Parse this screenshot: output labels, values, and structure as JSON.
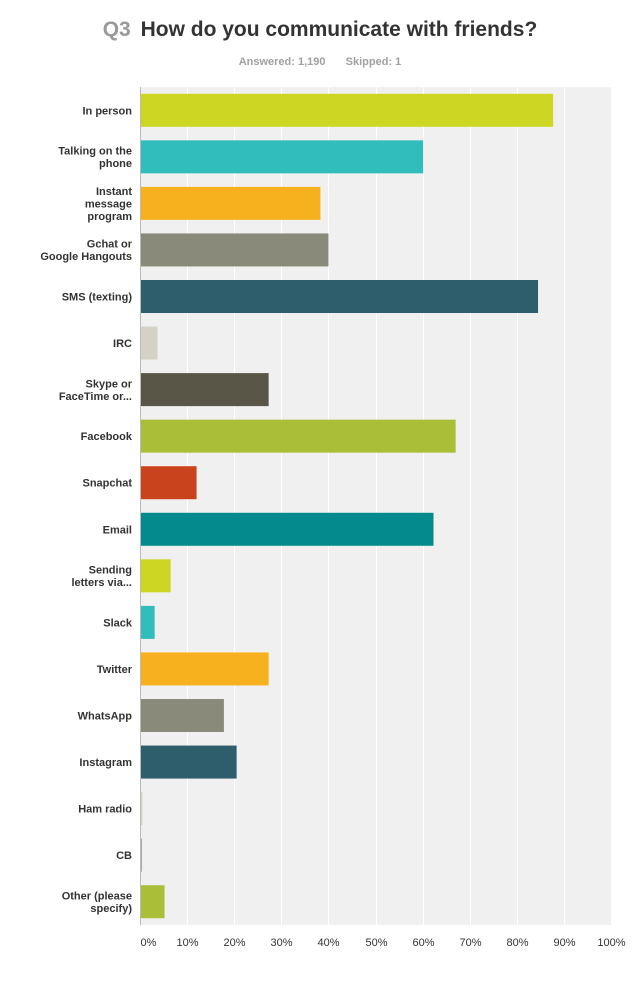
{
  "header": {
    "question_number": "Q3",
    "question_text": "How do you communicate with friends?",
    "answered_label": "Answered:",
    "answered_count": "1,190",
    "skipped_label": "Skipped:",
    "skipped_count": "1"
  },
  "chart_data": {
    "type": "bar",
    "orientation": "horizontal",
    "title": "How do you communicate with friends?",
    "xlabel": "",
    "ylabel": "",
    "xlim": [
      0,
      100
    ],
    "grid": true,
    "legend": "none",
    "x_ticks": [
      "0%",
      "10%",
      "20%",
      "30%",
      "40%",
      "50%",
      "60%",
      "70%",
      "80%",
      "90%",
      "100%"
    ],
    "categories": [
      {
        "lines": [
          "In person"
        ],
        "value": 87.5,
        "color": "#cdd623"
      },
      {
        "lines": [
          "Talking on the",
          "phone"
        ],
        "value": 59.9,
        "color": "#32bdbd"
      },
      {
        "lines": [
          "Instant",
          "message",
          "program"
        ],
        "value": 38.1,
        "color": "#f7b11e"
      },
      {
        "lines": [
          "Gchat or",
          "Google Hangouts"
        ],
        "value": 39.8,
        "color": "#898a79"
      },
      {
        "lines": [
          "SMS (texting)"
        ],
        "value": 84.3,
        "color": "#2e5d6b"
      },
      {
        "lines": [
          "IRC"
        ],
        "value": 3.5,
        "color": "#d4d2c4"
      },
      {
        "lines": [
          "Skype or",
          "FaceTime or..."
        ],
        "value": 27.1,
        "color": "#5a5647"
      },
      {
        "lines": [
          "Facebook"
        ],
        "value": 66.8,
        "color": "#abbe38"
      },
      {
        "lines": [
          "Snapchat"
        ],
        "value": 11.8,
        "color": "#c9441d"
      },
      {
        "lines": [
          "Email"
        ],
        "value": 62.1,
        "color": "#038a8c"
      },
      {
        "lines": [
          "Sending",
          "letters via..."
        ],
        "value": 6.3,
        "color": "#cdd623"
      },
      {
        "lines": [
          "Slack"
        ],
        "value": 2.9,
        "color": "#32bdbd"
      },
      {
        "lines": [
          "Twitter"
        ],
        "value": 27.1,
        "color": "#f7b11e"
      },
      {
        "lines": [
          "WhatsApp"
        ],
        "value": 17.6,
        "color": "#898a79"
      },
      {
        "lines": [
          "Instagram"
        ],
        "value": 20.3,
        "color": "#2e5d6b"
      },
      {
        "lines": [
          "Ham radio"
        ],
        "value": 0.3,
        "color": "#d4d2c4"
      },
      {
        "lines": [
          "CB"
        ],
        "value": 0.1,
        "color": "#5a5647"
      },
      {
        "lines": [
          "Other (please",
          "specify)"
        ],
        "value": 5.0,
        "color": "#abbe38"
      }
    ]
  }
}
